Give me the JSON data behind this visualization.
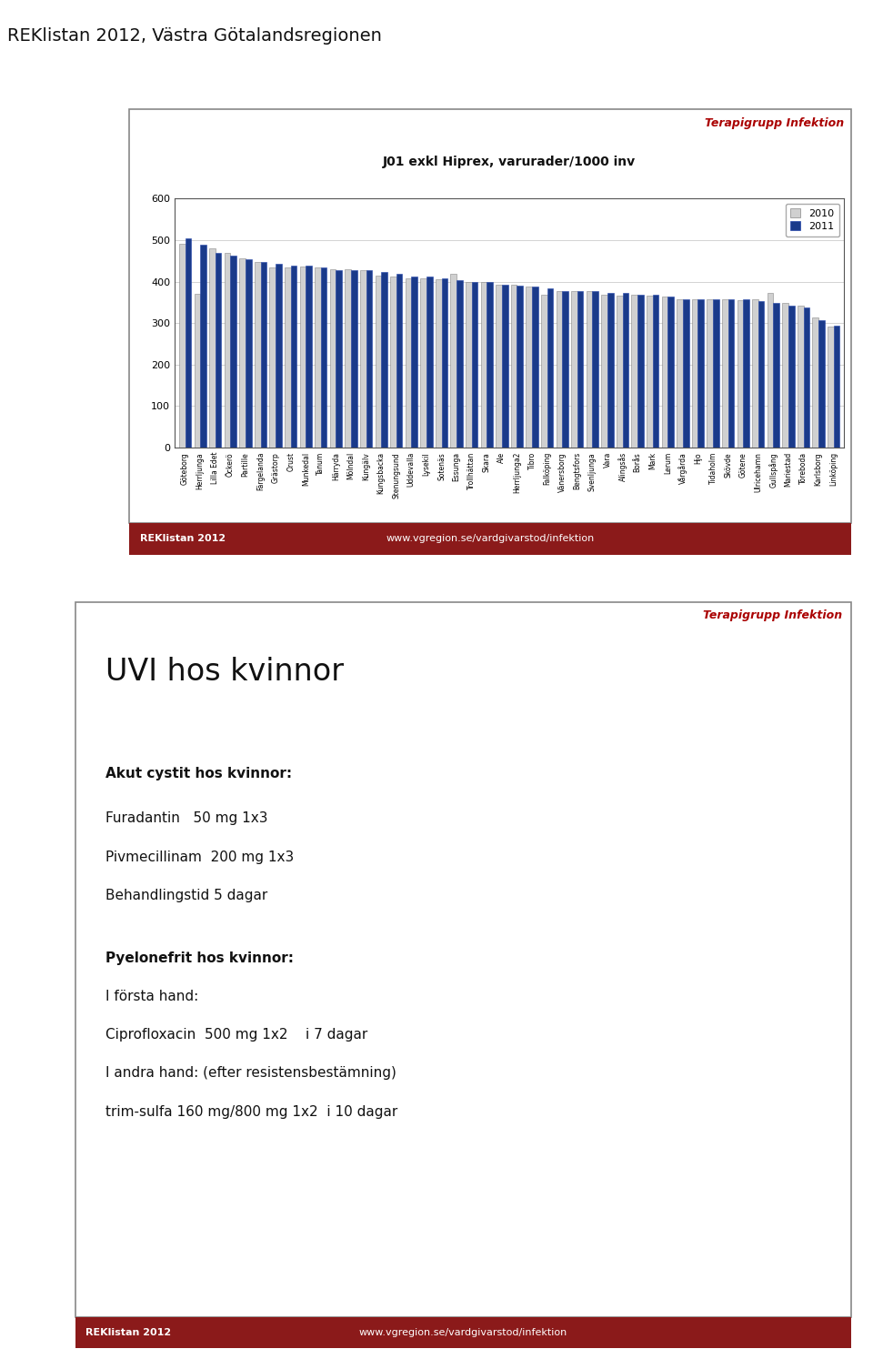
{
  "title": "REKlistan 2012, Västra Götalandsregionen",
  "chart_title": "J01 exkl Hiprex, varurader/1000 inv",
  "terapigrupp_label": "Terapigrupp Infektion",
  "categories": [
    "Göteborg",
    "Herrljunga",
    "Lilla Edet",
    "Öckerö",
    "Partille",
    "Färgelanda",
    "Grästorp",
    "Orust",
    "Munkedal",
    "Tanum",
    "Härryda",
    "Mölndal",
    "Kungälv",
    "Kungsbacka",
    "Stenungsund",
    "Uddevalla",
    "Lysekil",
    "Sotenäs",
    "Essunga",
    "Trollhättan",
    "Skara",
    "Ale",
    "Herrljunga2",
    "Tibro",
    "Falköping",
    "Vänersborg",
    "Bengtsfors",
    "Svenljunga",
    "Vara",
    "Alingsås",
    "Borås",
    "Mark",
    "Lerum",
    "Vårgårda",
    "Hjo",
    "Tidaholm",
    "Skövde",
    "Götene",
    "Ulricehamn",
    "Gullspång",
    "Mariestad",
    "Töreboda",
    "Karlsborg",
    "Linköping"
  ],
  "values_2010": [
    490,
    370,
    480,
    468,
    455,
    448,
    435,
    434,
    437,
    434,
    430,
    430,
    428,
    415,
    413,
    408,
    408,
    406,
    418,
    400,
    398,
    393,
    393,
    388,
    368,
    377,
    378,
    377,
    368,
    367,
    368,
    367,
    363,
    358,
    358,
    357,
    357,
    355,
    357,
    373,
    348,
    343,
    313,
    292
  ],
  "values_2011": [
    505,
    488,
    468,
    463,
    453,
    448,
    443,
    438,
    438,
    433,
    428,
    428,
    428,
    423,
    418,
    413,
    413,
    408,
    403,
    398,
    398,
    393,
    391,
    388,
    383,
    378,
    378,
    378,
    373,
    373,
    368,
    368,
    363,
    358,
    358,
    358,
    358,
    358,
    353,
    348,
    343,
    338,
    308,
    293
  ],
  "color_2010": "#d0d0d0",
  "color_2011": "#1a3a8a",
  "ylim_min": 0,
  "ylim_max": 600,
  "yticks": [
    0,
    100,
    200,
    300,
    400,
    500,
    600
  ],
  "footer_url": "www.vgregion.se/vardgivarstod/infektion",
  "footer_label": "REKlistan 2012",
  "box1_title": "Terapigrupp Infektion",
  "box1_heading": "UVI hos kvinnor",
  "box1_bold1": "Akut cystit hos kvinnor:",
  "box1_line1": "Furadantin   50 mg 1x3",
  "box1_line2": "Pivmecillinam  200 mg 1x3",
  "box1_line3": "Behandlingstid 5 dagar",
  "box1_bold2": "Pyelonefrit hos kvinnor:",
  "box1_line4": "I första hand:",
  "box1_line5": "Ciprofloxacin  500 mg 1x2    i 7 dagar",
  "box1_line6": "I andra hand: (efter resistensbestämning)",
  "box1_line7": "trim-sulfa 160 mg/800 mg 1x2  i 10 dagar",
  "bg_color": "#ffffff",
  "box_bg": "#ffffff",
  "box_border": "#888888",
  "footer_bg": "#8b1a1a",
  "chart_border_color": "#888888"
}
